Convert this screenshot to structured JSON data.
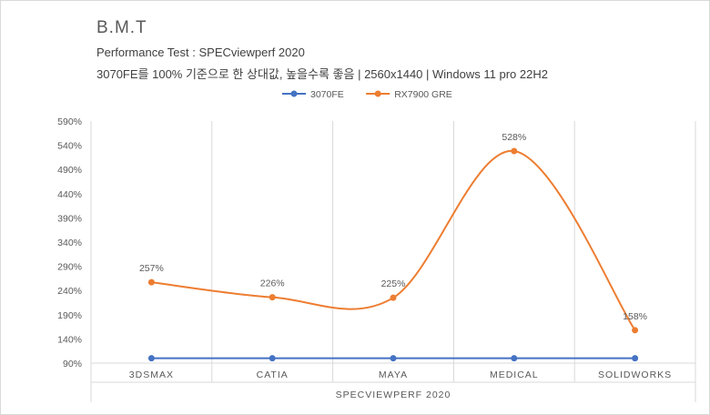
{
  "chart_data": {
    "type": "line",
    "title": "B.M.T",
    "subtitle_1": "Performance Test : SPECviewperf 2020",
    "subtitle_2": "3070FE를 100% 기준으로 한 상대값, 높을수록 좋음 | 2560x1440 | Windows 11 pro 22H2",
    "xlabel": "SPECVIEWPERF 2020",
    "ylabel": "",
    "categories": [
      "3DSMAX",
      "CATIA",
      "MAYA",
      "MEDICAL",
      "SOLIDWORKS"
    ],
    "y_ticks": [
      "590%",
      "540%",
      "490%",
      "440%",
      "390%",
      "340%",
      "290%",
      "240%",
      "190%",
      "140%",
      "90%"
    ],
    "ylim": [
      90,
      590
    ],
    "y_tick_step": 50,
    "grid": "vertical category dividers",
    "legend_position": "top",
    "smooth": true,
    "series": [
      {
        "name": "3070FE",
        "color": "#4472c4",
        "values": [
          100,
          100,
          100,
          100,
          100
        ],
        "labels": [
          "",
          "",
          "",
          "",
          ""
        ]
      },
      {
        "name": "RX7900 GRE",
        "color": "#ed7d31",
        "values": [
          257,
          226,
          225,
          528,
          158
        ],
        "labels": [
          "257%",
          "226%",
          "225%",
          "528%",
          "158%"
        ]
      }
    ]
  }
}
